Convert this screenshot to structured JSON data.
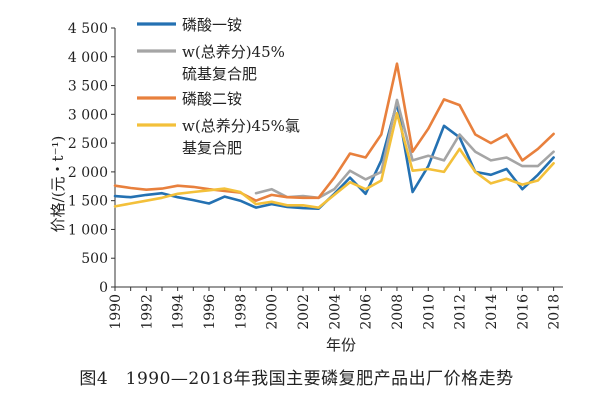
{
  "chart_data": {
    "type": "line",
    "xlabel": "年份",
    "ylabel": "价格/(元・t⁻¹)",
    "xlim": [
      1990,
      2018.6
    ],
    "ylim": [
      0,
      4500
    ],
    "x_ticks": [
      1990,
      1992,
      1994,
      1996,
      1998,
      2000,
      2002,
      2004,
      2006,
      2008,
      2010,
      2012,
      2014,
      2016,
      2018
    ],
    "y_ticks": [
      0,
      500,
      1000,
      1500,
      2000,
      2500,
      3000,
      3500,
      4000,
      4500
    ],
    "y_tick_labels": [
      "0",
      "500",
      "1 000",
      "1 500",
      "2 000",
      "2 500",
      "3 000",
      "3 500",
      "4 000",
      "4 500"
    ],
    "grid": false,
    "legend_position": "top-center",
    "series": [
      {
        "name": "磷酸一铵",
        "color": "#2471b2",
        "x": [
          1990,
          1991,
          1992,
          1993,
          1994,
          1995,
          1996,
          1997,
          1998,
          1999,
          2000,
          2001,
          2002,
          2003,
          2004,
          2005,
          2006,
          2007,
          2008,
          2009,
          2010,
          2011,
          2012,
          2013,
          2014,
          2015,
          2016,
          2017,
          2018
        ],
        "y": [
          1580,
          1560,
          1600,
          1630,
          1560,
          1510,
          1450,
          1570,
          1500,
          1380,
          1440,
          1390,
          1370,
          1360,
          1620,
          1900,
          1620,
          2200,
          3200,
          1650,
          2100,
          2800,
          2600,
          2000,
          1950,
          2050,
          1700,
          1950,
          2250
        ]
      },
      {
        "name": "w(总养分)45%硫基复合肥",
        "color": "#a5a5a5",
        "x": [
          1999,
          2000,
          2001,
          2002,
          2003,
          2004,
          2005,
          2006,
          2007,
          2008,
          2009,
          2010,
          2011,
          2012,
          2013,
          2014,
          2015,
          2016,
          2017,
          2018
        ],
        "y": [
          1630,
          1700,
          1560,
          1580,
          1550,
          1700,
          2020,
          1870,
          2000,
          3250,
          2200,
          2280,
          2200,
          2650,
          2350,
          2200,
          2250,
          2100,
          2100,
          2350
        ]
      },
      {
        "name": "磷酸二铵",
        "color": "#e8803d",
        "x": [
          1990,
          1991,
          1992,
          1993,
          1994,
          1995,
          1996,
          1997,
          1998,
          1999,
          2000,
          2001,
          2002,
          2003,
          2004,
          2005,
          2006,
          2007,
          2008,
          2009,
          2010,
          2011,
          2012,
          2013,
          2014,
          2015,
          2016,
          2017,
          2018
        ],
        "y": [
          1760,
          1720,
          1690,
          1710,
          1760,
          1740,
          1700,
          1670,
          1640,
          1500,
          1600,
          1560,
          1550,
          1550,
          1900,
          2320,
          2250,
          2650,
          3880,
          2350,
          2750,
          3260,
          3160,
          2650,
          2500,
          2650,
          2200,
          2400,
          2660
        ]
      },
      {
        "name": "w(总养分)45%氯基复合肥",
        "color": "#f3c03a",
        "x": [
          1990,
          1991,
          1992,
          1993,
          1994,
          1995,
          1996,
          1997,
          1998,
          1999,
          2000,
          2001,
          2002,
          2003,
          2004,
          2005,
          2006,
          2007,
          2008,
          2009,
          2010,
          2011,
          2012,
          2013,
          2014,
          2015,
          2016,
          2017,
          2018
        ],
        "y": [
          1400,
          1450,
          1500,
          1550,
          1620,
          1650,
          1680,
          1710,
          1650,
          1440,
          1480,
          1420,
          1420,
          1380,
          1600,
          1820,
          1700,
          1850,
          3020,
          2020,
          2050,
          2000,
          2400,
          2000,
          1800,
          1880,
          1780,
          1850,
          2150
        ]
      }
    ]
  },
  "legend_items": [
    {
      "line1": "磷酸一铵",
      "line2": ""
    },
    {
      "line1": "w(总养分)45%",
      "line2": "硫基复合肥"
    },
    {
      "line1": "磷酸二铵",
      "line2": ""
    },
    {
      "line1": "w(总养分)45%氯",
      "line2": "基复合肥"
    }
  ],
  "caption": "图4　1990—2018年我国主要磷复肥产品出厂价格走势"
}
